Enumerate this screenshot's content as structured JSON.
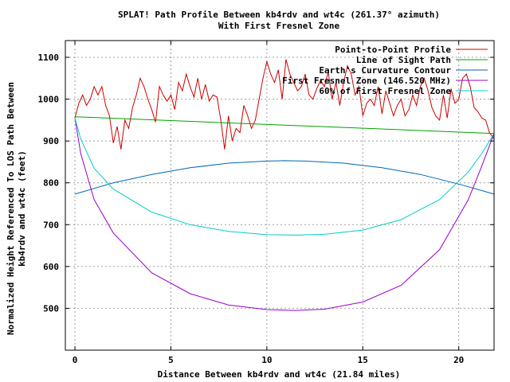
{
  "chart_data": {
    "type": "line",
    "title": "SPLAT! Path Profile Between kb4rdv and wt4c (261.37° azimuth)",
    "subtitle": "With First Fresnel Zone",
    "xlabel": "Distance Between kb4rdv and wt4c (21.84 miles)",
    "ylabel_line1": "Normalized Height Referenced To LOS Path Between",
    "ylabel_line2": "kb4rdv and wt4c (feet)",
    "xlim": [
      -0.5,
      21.84
    ],
    "ylim": [
      400,
      1140
    ],
    "xticks": [
      0,
      5,
      10,
      15,
      20
    ],
    "yticks": [
      500,
      600,
      700,
      800,
      900,
      1000,
      1100
    ],
    "grid": true,
    "legend_position": "top-right",
    "series": [
      {
        "name": "Point-to-Point Profile",
        "color": "#cc0000",
        "x": [
          0,
          0.2,
          0.4,
          0.6,
          0.8,
          1.0,
          1.2,
          1.4,
          1.6,
          1.8,
          2.0,
          2.2,
          2.4,
          2.6,
          2.8,
          3.0,
          3.2,
          3.4,
          3.6,
          3.8,
          4.0,
          4.2,
          4.4,
          4.6,
          4.8,
          5.0,
          5.2,
          5.4,
          5.6,
          5.8,
          6.0,
          6.2,
          6.4,
          6.6,
          6.8,
          7.0,
          7.2,
          7.4,
          7.6,
          7.8,
          8.0,
          8.2,
          8.4,
          8.6,
          8.8,
          9.0,
          9.2,
          9.4,
          9.6,
          9.8,
          10.0,
          10.2,
          10.4,
          10.6,
          10.8,
          11.0,
          11.2,
          11.4,
          11.6,
          11.8,
          12.0,
          12.2,
          12.4,
          12.6,
          12.8,
          13.0,
          13.2,
          13.4,
          13.6,
          13.8,
          14.0,
          14.2,
          14.4,
          14.6,
          14.8,
          15.0,
          15.2,
          15.4,
          15.6,
          15.8,
          16.0,
          16.2,
          16.4,
          16.6,
          16.8,
          17.0,
          17.2,
          17.4,
          17.6,
          17.8,
          18.0,
          18.2,
          18.4,
          18.6,
          18.8,
          19.0,
          19.2,
          19.4,
          19.6,
          19.8,
          20.0,
          20.2,
          20.4,
          20.6,
          20.8,
          21.0,
          21.2,
          21.4,
          21.6,
          21.84
        ],
        "y": [
          955,
          990,
          1010,
          985,
          1000,
          1030,
          1010,
          1030,
          985,
          960,
          895,
          935,
          880,
          950,
          930,
          980,
          1010,
          1050,
          1030,
          1000,
          975,
          945,
          1030,
          1010,
          995,
          1010,
          975,
          1040,
          1020,
          1060,
          1030,
          1005,
          1050,
          1000,
          1035,
          995,
          1010,
          1005,
          950,
          880,
          960,
          900,
          930,
          920,
          985,
          960,
          930,
          950,
          1000,
          1050,
          1090,
          1060,
          1040,
          1070,
          1000,
          1095,
          1060,
          1040,
          1020,
          1030,
          1060,
          1010,
          1000,
          1025,
          1045,
          1030,
          1065,
          1000,
          1040,
          985,
          1040,
          1080,
          1060,
          1010,
          1030,
          960,
          990,
          1000,
          985,
          1030,
          965,
          1020,
          990,
          960,
          985,
          1000,
          960,
          975,
          1010,
          985,
          1030,
          1050,
          1020,
          980,
          960,
          950,
          1010,
          955,
          1025,
          990,
          1000,
          1050,
          1060,
          1030,
          980,
          970,
          955,
          950,
          920,
          905
        ]
      },
      {
        "name": "Line of Sight Path",
        "color": "#00a000",
        "x": [
          0,
          21.84
        ],
        "y": [
          958,
          918
        ]
      },
      {
        "name": "Earth's Curvature Contour",
        "color": "#0066b3",
        "x": [
          0,
          2,
          4,
          6,
          8,
          10,
          10.92,
          12,
          14,
          16,
          18,
          20,
          21.84
        ],
        "y": [
          773,
          800,
          820,
          836,
          847,
          852,
          853,
          852,
          847,
          836,
          820,
          797,
          773
        ]
      },
      {
        "name": "First Fresnel Zone (146.520 MHz)",
        "color": "#9900cc",
        "x": [
          0,
          0.3,
          1,
          2,
          4,
          6,
          8,
          10,
          11.5,
          13,
          15,
          17,
          19,
          20.5,
          21.2,
          21.84
        ],
        "y": [
          955,
          870,
          760,
          680,
          585,
          535,
          508,
          497,
          495,
          498,
          515,
          555,
          640,
          760,
          840,
          918
        ]
      },
      {
        "name": "60% of First Fresnel Zone",
        "color": "#00cccc",
        "x": [
          0,
          0.3,
          1,
          2,
          4,
          6,
          8,
          10,
          11.5,
          13,
          15,
          17,
          19,
          20.5,
          21.2,
          21.84
        ],
        "y": [
          955,
          905,
          835,
          785,
          730,
          700,
          684,
          676,
          675,
          677,
          687,
          712,
          760,
          826,
          870,
          918
        ]
      }
    ]
  }
}
